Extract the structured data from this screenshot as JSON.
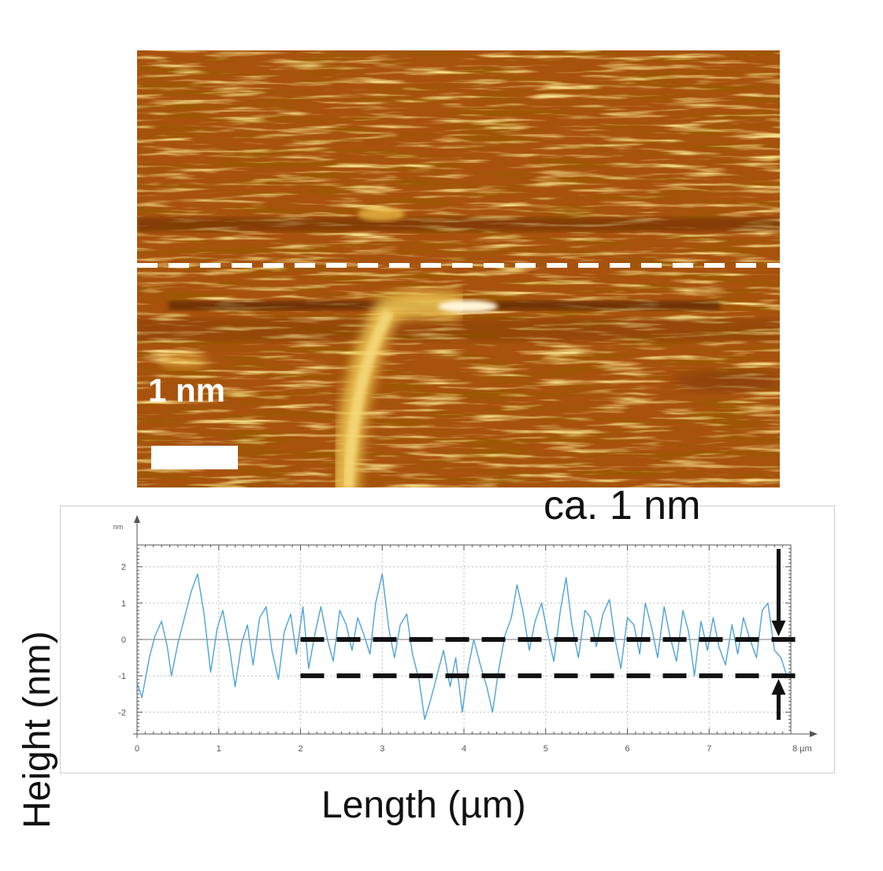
{
  "image": {
    "scale_label": "1 nm",
    "colors": {
      "dark": "#6a2a05",
      "mid": "#a8520e",
      "bright": "#f0c24a",
      "highlight": "#fff6d8",
      "marker": "#ffffff"
    }
  },
  "annotation": "ca. 1 nm",
  "chart_data": {
    "type": "line",
    "xlabel": "Length (µm)",
    "ylabel": "Height (nm)",
    "x_unit_label": "8 µm",
    "y_unit_label": "nm",
    "xlim": [
      0,
      8
    ],
    "ylim": [
      -2.6,
      2.6
    ],
    "xticks": [
      {
        "value": 0,
        "label": "0"
      },
      {
        "value": 1,
        "label": "1"
      },
      {
        "value": 2,
        "label": "2"
      },
      {
        "value": 3,
        "label": "3"
      },
      {
        "value": 4,
        "label": "4"
      },
      {
        "value": 5,
        "label": "5"
      },
      {
        "value": 6,
        "label": "6"
      },
      {
        "value": 7,
        "label": "7"
      }
    ],
    "yticks": [
      {
        "value": 2,
        "label": "2"
      },
      {
        "value": 1,
        "label": "1"
      },
      {
        "value": 0,
        "label": "0"
      },
      {
        "value": -1,
        "label": "-1"
      },
      {
        "value": -2,
        "label": "-2"
      }
    ],
    "grid": true,
    "line_color": "#4fa3d8",
    "reference_lines": [
      {
        "y": 0,
        "x_start": 2.0,
        "x_end": 8.1
      },
      {
        "y": -1,
        "x_start": 2.0,
        "x_end": 8.1
      }
    ],
    "series": [
      {
        "x": [
          0,
          0.06,
          0.15,
          0.22,
          0.3,
          0.37,
          0.42,
          0.5,
          0.58,
          0.66,
          0.74,
          0.82,
          0.9,
          0.98,
          1.05,
          1.13,
          1.2,
          1.28,
          1.35,
          1.42,
          1.5,
          1.58,
          1.65,
          1.73,
          1.8,
          1.88,
          1.95,
          2.03,
          2.1,
          2.18,
          2.25,
          2.33,
          2.4,
          2.48,
          2.56,
          2.63,
          2.7,
          2.78,
          2.85,
          2.92,
          3.0,
          3.08,
          3.15,
          3.22,
          3.3,
          3.37,
          3.45,
          3.52,
          3.6,
          3.68,
          3.75,
          3.83,
          3.9,
          3.98,
          4.05,
          4.12,
          4.2,
          4.28,
          4.35,
          4.42,
          4.5,
          4.58,
          4.65,
          4.72,
          4.8,
          4.87,
          4.95,
          5.02,
          5.1,
          5.18,
          5.25,
          5.32,
          5.4,
          5.48,
          5.55,
          5.62,
          5.7,
          5.78,
          5.85,
          5.92,
          6.0,
          6.08,
          6.15,
          6.22,
          6.3,
          6.37,
          6.45,
          6.52,
          6.6,
          6.68,
          6.75,
          6.82,
          6.9,
          6.98,
          7.05,
          7.12,
          7.2,
          7.28,
          7.35,
          7.42,
          7.5,
          7.58,
          7.65,
          7.72,
          7.8,
          7.88,
          7.95
        ],
        "values": [
          -1.2,
          -1.6,
          -0.5,
          0.1,
          0.5,
          -0.2,
          -1.0,
          -0.1,
          0.6,
          1.3,
          1.8,
          0.7,
          -0.9,
          0.3,
          0.8,
          -0.2,
          -1.3,
          -0.1,
          0.4,
          -0.7,
          0.6,
          0.9,
          -0.3,
          -1.1,
          0.2,
          0.7,
          -0.4,
          0.9,
          -0.8,
          0.2,
          0.9,
          0.0,
          -0.6,
          0.8,
          0.4,
          -0.3,
          0.6,
          0.1,
          -0.4,
          1.0,
          1.8,
          0.3,
          -0.5,
          0.4,
          0.7,
          -0.4,
          -1.1,
          -2.2,
          -1.6,
          -0.9,
          -0.3,
          -1.3,
          -0.5,
          -2.0,
          -0.8,
          0.0,
          -0.7,
          -1.3,
          -2.0,
          -0.9,
          0.1,
          0.6,
          1.5,
          0.8,
          -0.3,
          0.5,
          1.0,
          0.2,
          -0.6,
          0.8,
          1.7,
          0.4,
          -0.5,
          0.8,
          0.6,
          -0.2,
          0.7,
          1.1,
          0.0,
          -0.8,
          0.6,
          0.4,
          -0.4,
          1.0,
          0.3,
          -0.5,
          0.9,
          0.1,
          -0.6,
          0.8,
          0.2,
          -1.0,
          0.5,
          -0.3,
          0.6,
          -0.2,
          -0.7,
          0.4,
          -0.4,
          0.6,
          0.0,
          -0.5,
          0.8,
          1.0,
          -0.3,
          -0.5,
          -1.0
        ]
      }
    ]
  }
}
